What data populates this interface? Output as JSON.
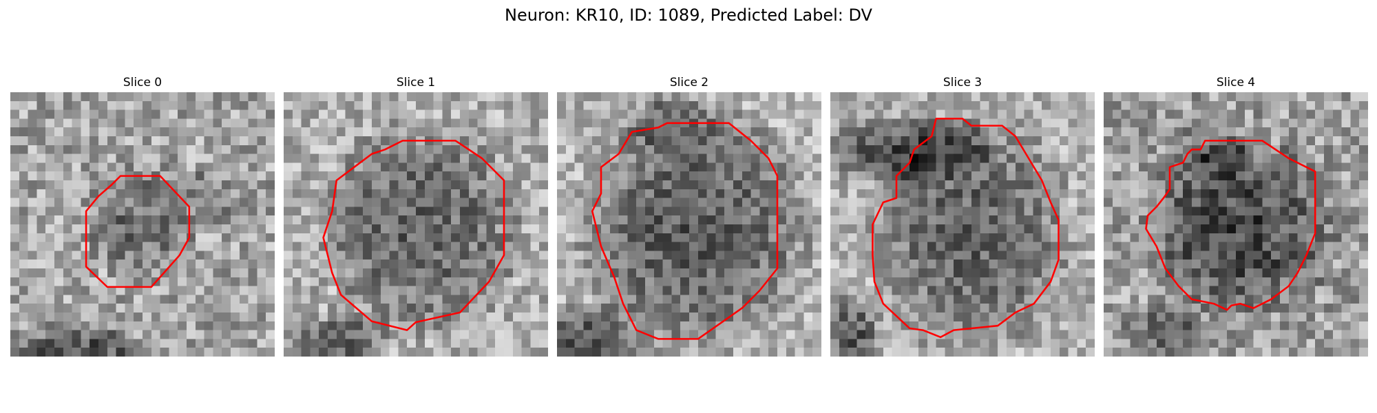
{
  "figure": {
    "title": "Neuron: KR10, ID: 1089, Predicted Label: DV",
    "contour_color": "#ff0000"
  },
  "slices": [
    {
      "title": "Slice 0"
    },
    {
      "title": "Slice 1"
    },
    {
      "title": "Slice 2"
    },
    {
      "title": "Slice 3"
    },
    {
      "title": "Slice 4"
    }
  ]
}
